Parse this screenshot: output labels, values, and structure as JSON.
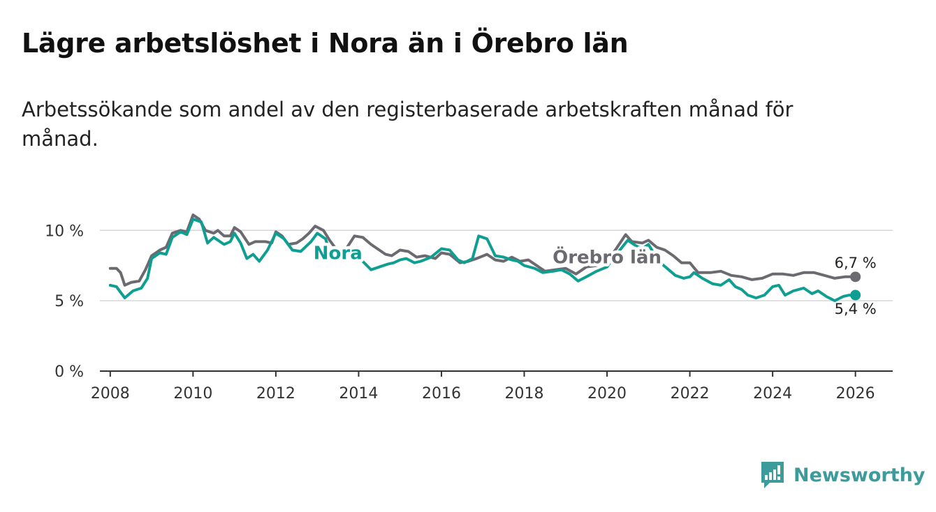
{
  "title": "Lägre arbetslöshet i Nora än i Örebro län",
  "subtitle": "Arbetssökande som andel av den registerbaserade arbetskraften månad för månad.",
  "brand": {
    "name": "Newsworthy",
    "icon": "newsworthy-logo-icon",
    "color": "#3d9b9b"
  },
  "chart_data": {
    "type": "line",
    "title": "Lägre arbetslöshet i Nora än i Örebro län",
    "xlabel": "",
    "ylabel": "",
    "xlim": [
      2007.75,
      2026.9
    ],
    "ylim": [
      0,
      11.5
    ],
    "y_ticks": [
      {
        "value": 0,
        "label": "0 %"
      },
      {
        "value": 5,
        "label": "5 %"
      },
      {
        "value": 10,
        "label": "10 %"
      }
    ],
    "x_ticks": [
      {
        "value": 2008,
        "label": "2008"
      },
      {
        "value": 2010,
        "label": "2010"
      },
      {
        "value": 2012,
        "label": "2012"
      },
      {
        "value": 2014,
        "label": "2014"
      },
      {
        "value": 2016,
        "label": "2016"
      },
      {
        "value": 2018,
        "label": "2018"
      },
      {
        "value": 2020,
        "label": "2020"
      },
      {
        "value": 2022,
        "label": "2022"
      },
      {
        "value": 2024,
        "label": "2024"
      },
      {
        "value": 2026,
        "label": "2026"
      }
    ],
    "grid": true,
    "series": [
      {
        "name": "Örebro län",
        "label": "Örebro län",
        "color": "#6b6a70",
        "end_label": "6,7 %",
        "label_year": 2020.0,
        "label_value": 8.1,
        "points": [
          [
            2008.0,
            7.3
          ],
          [
            2008.15,
            7.3
          ],
          [
            2008.25,
            7.0
          ],
          [
            2008.35,
            6.1
          ],
          [
            2008.5,
            6.3
          ],
          [
            2008.7,
            6.4
          ],
          [
            2008.85,
            7.2
          ],
          [
            2009.0,
            8.2
          ],
          [
            2009.2,
            8.6
          ],
          [
            2009.35,
            8.8
          ],
          [
            2009.5,
            9.8
          ],
          [
            2009.7,
            10.0
          ],
          [
            2009.85,
            9.9
          ],
          [
            2010.0,
            11.1
          ],
          [
            2010.15,
            10.8
          ],
          [
            2010.3,
            10.0
          ],
          [
            2010.5,
            9.8
          ],
          [
            2010.6,
            10.0
          ],
          [
            2010.75,
            9.6
          ],
          [
            2010.9,
            9.6
          ],
          [
            2011.0,
            10.2
          ],
          [
            2011.15,
            9.9
          ],
          [
            2011.35,
            9.0
          ],
          [
            2011.5,
            9.2
          ],
          [
            2011.75,
            9.2
          ],
          [
            2011.9,
            9.1
          ],
          [
            2012.0,
            9.9
          ],
          [
            2012.15,
            9.6
          ],
          [
            2012.3,
            9.0
          ],
          [
            2012.5,
            9.1
          ],
          [
            2012.65,
            9.4
          ],
          [
            2012.8,
            9.8
          ],
          [
            2012.95,
            10.3
          ],
          [
            2013.15,
            10.0
          ],
          [
            2013.3,
            9.3
          ],
          [
            2013.5,
            8.5
          ],
          [
            2013.7,
            8.7
          ],
          [
            2013.9,
            9.6
          ],
          [
            2014.1,
            9.5
          ],
          [
            2014.3,
            9.0
          ],
          [
            2014.5,
            8.6
          ],
          [
            2014.65,
            8.3
          ],
          [
            2014.8,
            8.2
          ],
          [
            2015.0,
            8.6
          ],
          [
            2015.2,
            8.5
          ],
          [
            2015.4,
            8.1
          ],
          [
            2015.6,
            8.2
          ],
          [
            2015.85,
            8.0
          ],
          [
            2016.0,
            8.4
          ],
          [
            2016.2,
            8.3
          ],
          [
            2016.45,
            7.7
          ],
          [
            2016.65,
            7.8
          ],
          [
            2016.85,
            8.0
          ],
          [
            2017.1,
            8.3
          ],
          [
            2017.3,
            7.9
          ],
          [
            2017.5,
            7.8
          ],
          [
            2017.7,
            8.1
          ],
          [
            2017.9,
            7.8
          ],
          [
            2018.1,
            7.9
          ],
          [
            2018.3,
            7.5
          ],
          [
            2018.5,
            7.1
          ],
          [
            2018.75,
            7.2
          ],
          [
            2019.0,
            7.3
          ],
          [
            2019.25,
            6.9
          ],
          [
            2019.5,
            7.4
          ],
          [
            2019.75,
            7.5
          ],
          [
            2020.0,
            7.8
          ],
          [
            2020.2,
            8.6
          ],
          [
            2020.45,
            9.7
          ],
          [
            2020.6,
            9.2
          ],
          [
            2020.85,
            9.1
          ],
          [
            2021.0,
            9.3
          ],
          [
            2021.2,
            8.8
          ],
          [
            2021.4,
            8.6
          ],
          [
            2021.6,
            8.2
          ],
          [
            2021.8,
            7.7
          ],
          [
            2022.0,
            7.7
          ],
          [
            2022.2,
            7.0
          ],
          [
            2022.5,
            7.0
          ],
          [
            2022.75,
            7.1
          ],
          [
            2023.0,
            6.8
          ],
          [
            2023.25,
            6.7
          ],
          [
            2023.5,
            6.5
          ],
          [
            2023.75,
            6.6
          ],
          [
            2024.0,
            6.9
          ],
          [
            2024.25,
            6.9
          ],
          [
            2024.5,
            6.8
          ],
          [
            2024.75,
            7.0
          ],
          [
            2025.0,
            7.0
          ],
          [
            2025.25,
            6.8
          ],
          [
            2025.5,
            6.6
          ],
          [
            2025.75,
            6.7
          ],
          [
            2026.0,
            6.7
          ]
        ]
      },
      {
        "name": "Nora",
        "label": "Nora",
        "color": "#0f9e92",
        "end_label": "5,4 %",
        "label_year": 2013.5,
        "label_value": 8.4,
        "points": [
          [
            2008.0,
            6.1
          ],
          [
            2008.15,
            6.0
          ],
          [
            2008.35,
            5.2
          ],
          [
            2008.55,
            5.7
          ],
          [
            2008.75,
            5.9
          ],
          [
            2008.9,
            6.6
          ],
          [
            2009.0,
            8.0
          ],
          [
            2009.2,
            8.4
          ],
          [
            2009.35,
            8.3
          ],
          [
            2009.5,
            9.5
          ],
          [
            2009.7,
            9.9
          ],
          [
            2009.85,
            9.7
          ],
          [
            2010.0,
            10.8
          ],
          [
            2010.2,
            10.6
          ],
          [
            2010.35,
            9.1
          ],
          [
            2010.5,
            9.5
          ],
          [
            2010.75,
            9.0
          ],
          [
            2010.9,
            9.2
          ],
          [
            2011.0,
            9.8
          ],
          [
            2011.15,
            9.1
          ],
          [
            2011.3,
            8.0
          ],
          [
            2011.45,
            8.3
          ],
          [
            2011.6,
            7.8
          ],
          [
            2011.8,
            8.6
          ],
          [
            2012.0,
            9.8
          ],
          [
            2012.2,
            9.4
          ],
          [
            2012.4,
            8.6
          ],
          [
            2012.6,
            8.5
          ],
          [
            2012.85,
            9.2
          ],
          [
            2013.0,
            9.8
          ],
          [
            2013.2,
            9.4
          ],
          [
            2013.35,
            8.1
          ],
          [
            2013.55,
            8.1
          ],
          [
            2014.0,
            8.1
          ],
          [
            2014.3,
            7.2
          ],
          [
            2014.5,
            7.4
          ],
          [
            2014.7,
            7.6
          ],
          [
            2014.85,
            7.7
          ],
          [
            2015.0,
            7.9
          ],
          [
            2015.15,
            8.0
          ],
          [
            2015.35,
            7.7
          ],
          [
            2015.5,
            7.8
          ],
          [
            2015.75,
            8.1
          ],
          [
            2016.0,
            8.7
          ],
          [
            2016.2,
            8.6
          ],
          [
            2016.4,
            7.9
          ],
          [
            2016.55,
            7.7
          ],
          [
            2016.75,
            8.0
          ],
          [
            2016.9,
            9.6
          ],
          [
            2017.1,
            9.4
          ],
          [
            2017.3,
            8.2
          ],
          [
            2017.5,
            8.1
          ],
          [
            2017.7,
            7.9
          ],
          [
            2017.85,
            7.8
          ],
          [
            2018.0,
            7.5
          ],
          [
            2018.25,
            7.3
          ],
          [
            2018.45,
            7.0
          ],
          [
            2018.7,
            7.1
          ],
          [
            2018.9,
            7.2
          ],
          [
            2019.1,
            6.9
          ],
          [
            2019.3,
            6.4
          ],
          [
            2019.5,
            6.7
          ],
          [
            2019.75,
            7.1
          ],
          [
            2020.0,
            7.4
          ],
          [
            2020.2,
            8.2
          ],
          [
            2020.5,
            9.3
          ],
          [
            2020.7,
            8.9
          ],
          [
            2020.85,
            8.7
          ],
          [
            2021.0,
            9.0
          ],
          [
            2021.25,
            7.8
          ],
          [
            2021.45,
            7.3
          ],
          [
            2021.65,
            6.8
          ],
          [
            2021.85,
            6.6
          ],
          [
            2022.0,
            6.7
          ],
          [
            2022.1,
            7.0
          ],
          [
            2022.3,
            6.6
          ],
          [
            2022.55,
            6.2
          ],
          [
            2022.75,
            6.1
          ],
          [
            2022.95,
            6.5
          ],
          [
            2023.1,
            6.0
          ],
          [
            2023.25,
            5.8
          ],
          [
            2023.4,
            5.4
          ],
          [
            2023.6,
            5.2
          ],
          [
            2023.8,
            5.4
          ],
          [
            2024.0,
            6.0
          ],
          [
            2024.15,
            6.1
          ],
          [
            2024.3,
            5.4
          ],
          [
            2024.5,
            5.7
          ],
          [
            2024.75,
            5.9
          ],
          [
            2024.95,
            5.5
          ],
          [
            2025.1,
            5.7
          ],
          [
            2025.3,
            5.3
          ],
          [
            2025.5,
            5.0
          ],
          [
            2025.7,
            5.3
          ],
          [
            2025.85,
            5.4
          ],
          [
            2026.0,
            5.4
          ]
        ]
      }
    ]
  }
}
